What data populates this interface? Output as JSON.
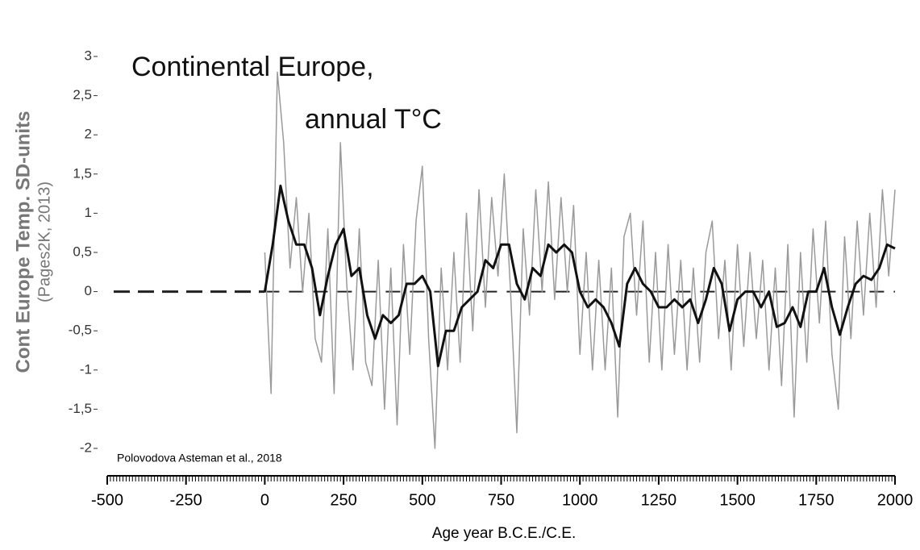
{
  "chart_data": {
    "type": "line",
    "title": "Continental Europe,",
    "subtitle": "annual T°C",
    "y_label": "Cont Europe Temp. SD-units",
    "y_label_sub": "(Pages2K, 2013)",
    "x_label": "Age year B.C.E./C.E.",
    "source": "Polovodova Asteman et al., 2018",
    "xlim": [
      -500,
      2000
    ],
    "xticks": [
      -500,
      -250,
      0,
      250,
      500,
      750,
      1000,
      1250,
      1500,
      1750,
      2000
    ],
    "ylim": [
      -2,
      3
    ],
    "yticks": [
      3,
      {
        "value": 2.5,
        "label": "2,5"
      },
      2,
      {
        "value": 1.5,
        "label": "1,5"
      },
      1,
      {
        "value": 0.5,
        "label": "0,5"
      },
      0,
      {
        "value": -0.5,
        "label": "-0,5"
      },
      -1,
      {
        "value": -1.5,
        "label": "-1,5"
      },
      -2
    ],
    "reference_line": 0,
    "series": [
      {
        "color": "#9a9a9a",
        "x": [
          0,
          20,
          40,
          60,
          80,
          100,
          120,
          140,
          160,
          180,
          200,
          220,
          240,
          260,
          280,
          300,
          320,
          340,
          360,
          380,
          400,
          420,
          440,
          460,
          480,
          500,
          520,
          540,
          560,
          580,
          600,
          620,
          640,
          660,
          680,
          700,
          720,
          740,
          760,
          780,
          800,
          820,
          840,
          860,
          880,
          900,
          920,
          940,
          960,
          980,
          1000,
          1020,
          1040,
          1060,
          1080,
          1100,
          1120,
          1140,
          1160,
          1180,
          1200,
          1220,
          1240,
          1260,
          1280,
          1300,
          1320,
          1340,
          1360,
          1380,
          1400,
          1420,
          1440,
          1460,
          1480,
          1500,
          1520,
          1540,
          1560,
          1580,
          1600,
          1620,
          1640,
          1660,
          1680,
          1700,
          1720,
          1740,
          1760,
          1780,
          1800,
          1820,
          1840,
          1860,
          1880,
          1900,
          1920,
          1940,
          1960,
          1980,
          2000
        ],
        "values": [
          0.5,
          -1.3,
          2.8,
          1.9,
          0.3,
          1.2,
          0.0,
          1.0,
          -0.6,
          -0.9,
          0.8,
          -1.3,
          1.9,
          0.1,
          -1.0,
          0.8,
          -0.9,
          -1.2,
          0.4,
          -1.5,
          0.3,
          -1.7,
          0.6,
          -0.8,
          0.9,
          1.6,
          -0.6,
          -2.0,
          0.3,
          -1.0,
          0.5,
          -0.9,
          1.0,
          -0.5,
          1.3,
          -0.2,
          1.2,
          0.2,
          1.5,
          0.0,
          -1.8,
          0.8,
          -0.3,
          1.3,
          0.0,
          1.4,
          -0.1,
          1.2,
          0.0,
          1.1,
          -0.8,
          0.5,
          -1.0,
          0.4,
          -1.0,
          0.3,
          -1.6,
          0.7,
          1.0,
          -0.3,
          0.9,
          -0.9,
          0.5,
          -1.0,
          0.6,
          -0.8,
          0.4,
          -1.0,
          0.3,
          -0.9,
          0.5,
          0.9,
          -0.6,
          0.4,
          -1.0,
          0.6,
          -0.7,
          0.5,
          -0.6,
          0.4,
          -1.0,
          0.3,
          -1.2,
          0.6,
          -1.6,
          0.5,
          -0.9,
          0.8,
          -0.4,
          0.9,
          -0.8,
          -1.5,
          0.7,
          -0.6,
          0.9,
          -0.3,
          1.0,
          -0.2,
          1.3,
          0.2,
          1.3
        ]
      },
      {
        "color": "#111111",
        "x": [
          0,
          25,
          50,
          75,
          100,
          125,
          150,
          175,
          200,
          225,
          250,
          275,
          300,
          325,
          350,
          375,
          400,
          425,
          450,
          475,
          500,
          525,
          550,
          575,
          600,
          625,
          650,
          675,
          700,
          725,
          750,
          775,
          800,
          825,
          850,
          875,
          900,
          925,
          950,
          975,
          1000,
          1025,
          1050,
          1075,
          1100,
          1125,
          1150,
          1175,
          1200,
          1225,
          1250,
          1275,
          1300,
          1325,
          1350,
          1375,
          1400,
          1425,
          1450,
          1475,
          1500,
          1525,
          1550,
          1575,
          1600,
          1625,
          1650,
          1675,
          1700,
          1725,
          1750,
          1775,
          1800,
          1825,
          1850,
          1875,
          1900,
          1925,
          1950,
          1975,
          2000
        ],
        "values": [
          0.0,
          0.6,
          1.35,
          0.9,
          0.6,
          0.6,
          0.3,
          -0.3,
          0.2,
          0.6,
          0.8,
          0.2,
          0.3,
          -0.3,
          -0.6,
          -0.3,
          -0.4,
          -0.3,
          0.1,
          0.1,
          0.2,
          0.0,
          -0.95,
          -0.5,
          -0.5,
          -0.2,
          -0.1,
          0.0,
          0.4,
          0.3,
          0.6,
          0.6,
          0.1,
          -0.1,
          0.3,
          0.2,
          0.6,
          0.5,
          0.6,
          0.5,
          0.0,
          -0.2,
          -0.1,
          -0.2,
          -0.4,
          -0.7,
          0.1,
          0.3,
          0.1,
          0.0,
          -0.2,
          -0.2,
          -0.1,
          -0.2,
          -0.1,
          -0.4,
          -0.1,
          0.3,
          0.1,
          -0.5,
          -0.1,
          0.0,
          0.0,
          -0.2,
          0.0,
          -0.45,
          -0.4,
          -0.2,
          -0.45,
          0.0,
          0.0,
          0.3,
          -0.2,
          -0.55,
          -0.2,
          0.1,
          0.2,
          0.15,
          0.3,
          0.6,
          0.55
        ]
      }
    ]
  }
}
